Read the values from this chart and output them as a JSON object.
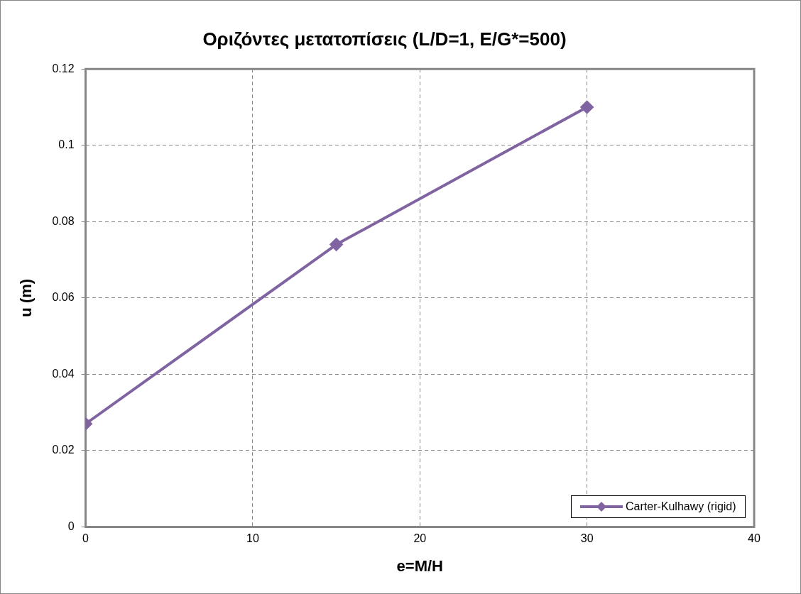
{
  "chart_data": {
    "type": "line",
    "title": "Οριζόντες μετατοπίσεις (L/D=1, E/G*=500)",
    "xlabel": "e=M/H",
    "ylabel": "u (m)",
    "x": [
      0,
      15,
      30
    ],
    "series": [
      {
        "name": "Carter-Kulhawy (rigid)",
        "color": "#8064a2",
        "values": [
          0.027,
          0.074,
          0.11
        ]
      }
    ],
    "xlim": [
      0,
      40
    ],
    "xticks": [
      0,
      10,
      20,
      30,
      40
    ],
    "ylim": [
      0,
      0.12
    ],
    "yticks": [
      0,
      0.02,
      0.04,
      0.06,
      0.08,
      0.1,
      0.12
    ],
    "grid": true,
    "legend": "bottom right",
    "marker": "diamond",
    "line_style": "solid"
  }
}
